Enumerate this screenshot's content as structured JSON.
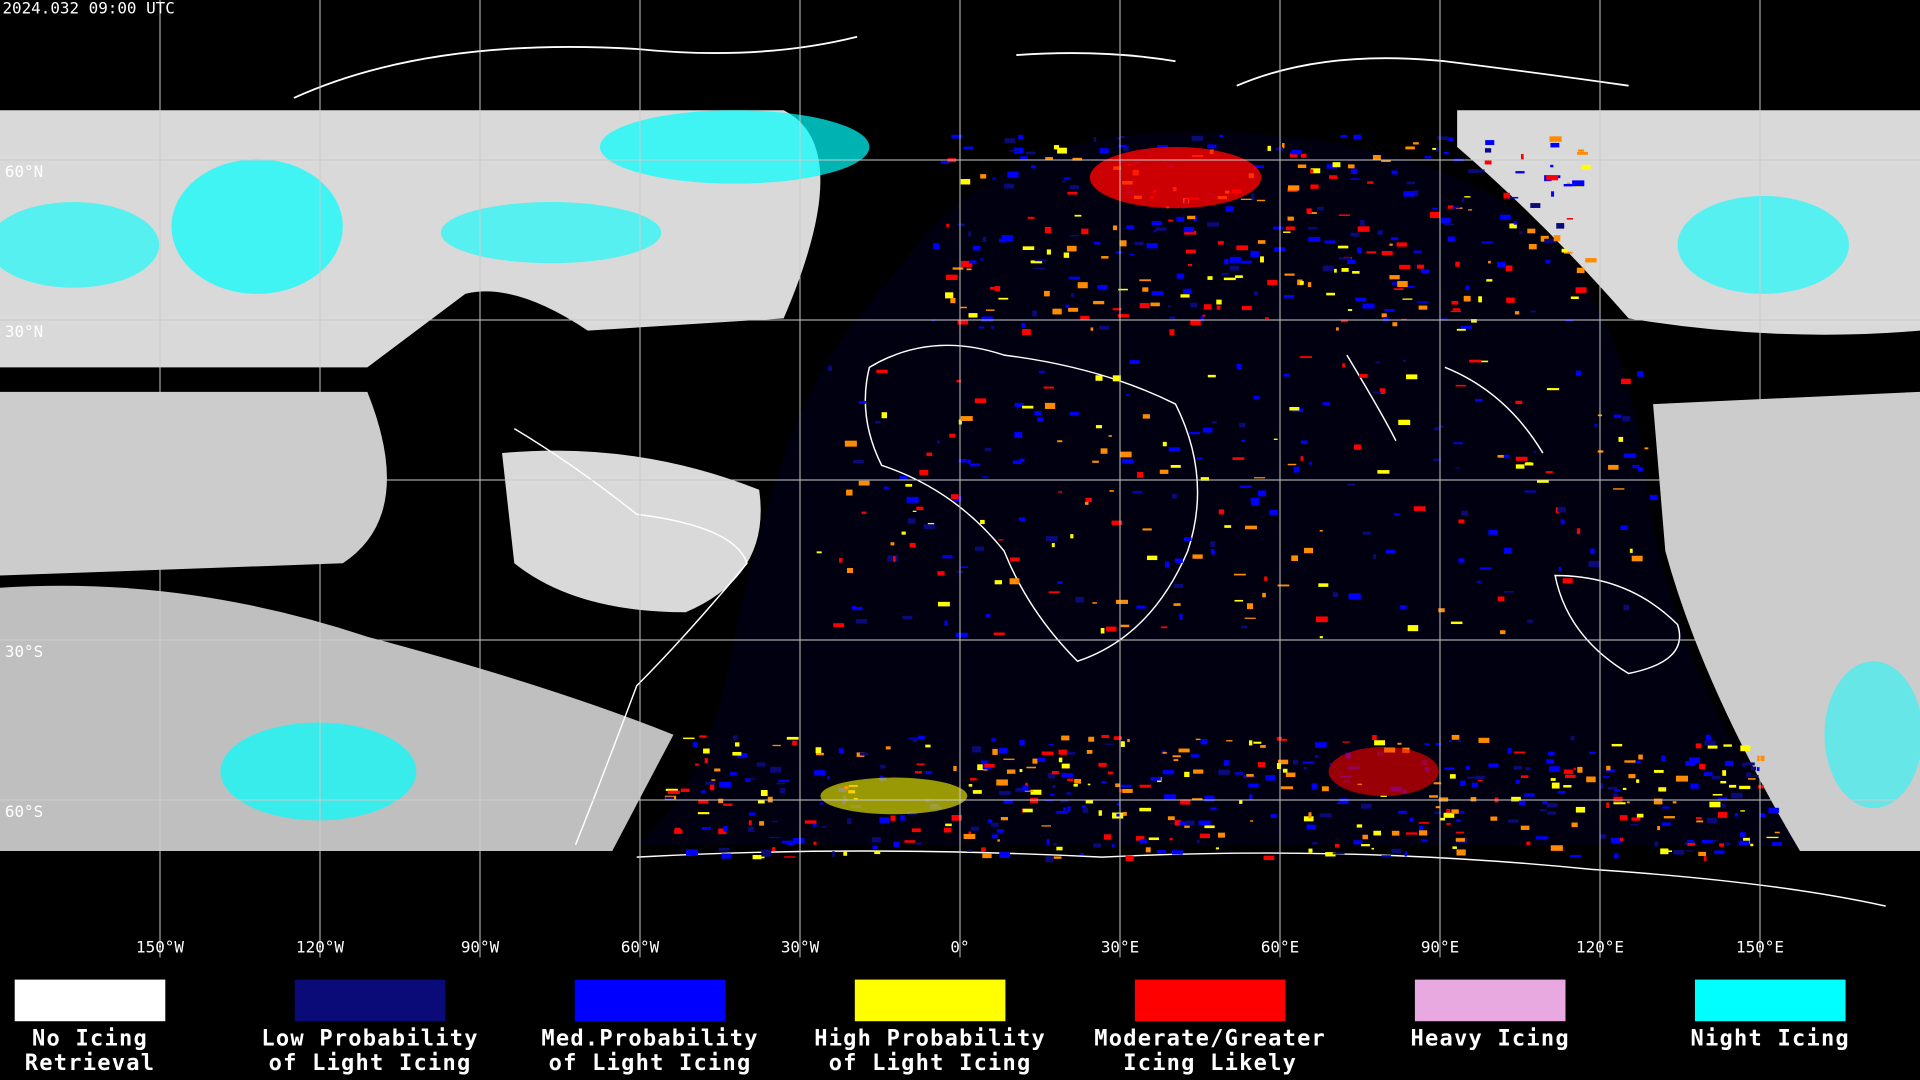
{
  "header": {
    "timestamp": "2024.032 09:00 UTC"
  },
  "map": {
    "lat_labels": [
      "60°N",
      "30°N",
      "30°S",
      "60°S"
    ],
    "lon_labels": [
      "150°W",
      "120°W",
      "90°W",
      "60°W",
      "30°W",
      "0°",
      "30°E",
      "60°E",
      "90°E",
      "120°E",
      "150°E"
    ]
  },
  "legend": [
    {
      "color": "#ffffff",
      "lines": [
        "No Icing",
        "Retrieval"
      ]
    },
    {
      "color": "#0a0a78",
      "lines": [
        "Low Probability",
        "of Light Icing"
      ]
    },
    {
      "color": "#0000ff",
      "lines": [
        "Med.Probability",
        "of Light Icing"
      ]
    },
    {
      "color": "#ffff00",
      "lines": [
        "High Probability",
        "of Light Icing"
      ]
    },
    {
      "color": "#ff0000",
      "lines": [
        "Moderate/Greater",
        "Icing Likely"
      ]
    },
    {
      "color": "#e8a8e0",
      "lines": [
        "Heavy Icing"
      ]
    },
    {
      "color": "#00ffff",
      "lines": [
        "Night Icing"
      ]
    }
  ]
}
